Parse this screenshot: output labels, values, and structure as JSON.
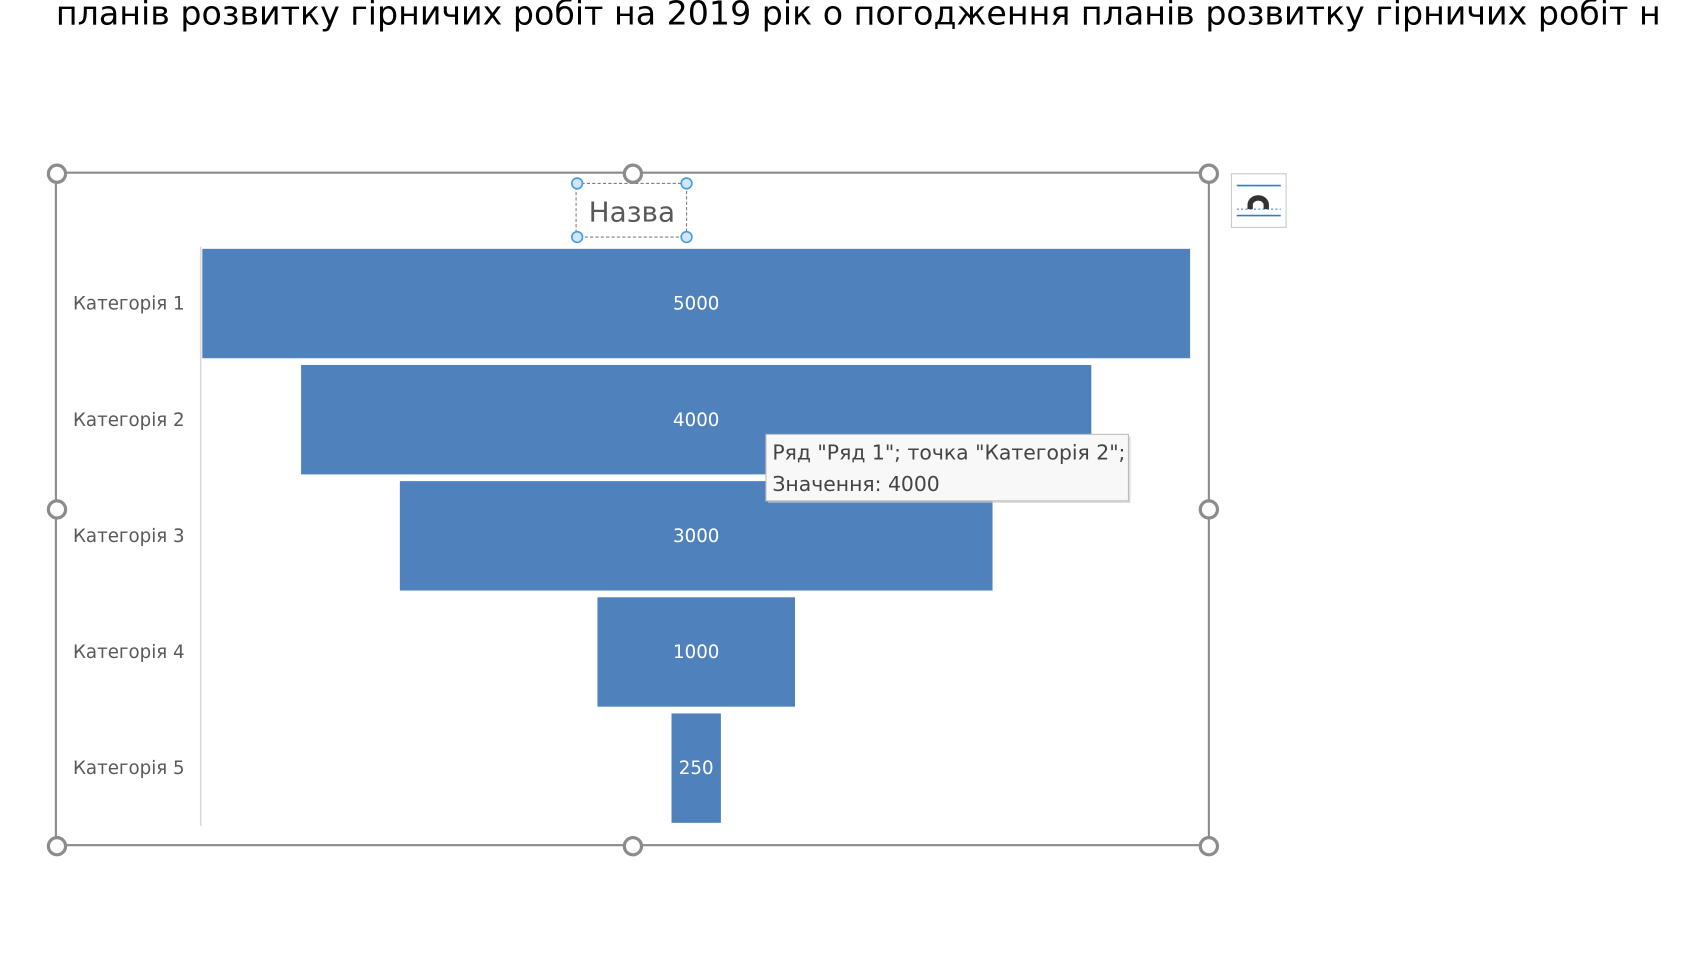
{
  "document_text": "планів розвитку гірничих робіт на 2019 рік о погодження планів розвитку гірничих робіт н",
  "chart_data": {
    "type": "funnel",
    "title": "Назва",
    "categories": [
      "Категорія 1",
      "Категорія 2",
      "Категорія 3",
      "Категорія 4",
      "Категорія 5"
    ],
    "values": [
      5000,
      4000,
      3000,
      1000,
      250
    ],
    "color": "#4f81bd"
  },
  "tooltip": {
    "lines": [
      "Ряд \"Ряд 1\"; точка \"Категорія 2\";",
      "Значення: 4000"
    ]
  }
}
